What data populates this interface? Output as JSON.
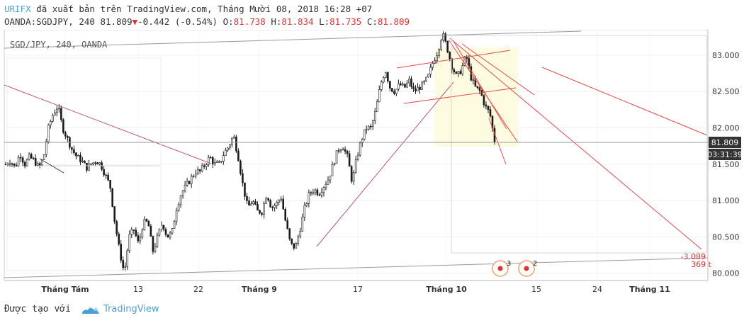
{
  "header": {
    "publisher": "URIFX",
    "published_text": "đã xuất bản trên TradingView.com, Tháng Mười 08, 2018 16:28 +07",
    "symbol_line": "OANDA:SGDJPY, 240",
    "last": "81.809",
    "change": "-0.442 (-0.54%)",
    "o_label": "O:",
    "o": "81.738",
    "h_label": "H:",
    "h": "81.834",
    "l_label": "L:",
    "l": "81.735",
    "c_label": "C:",
    "c": "81.809"
  },
  "footer": {
    "made_with": "Được tạo với",
    "brand": "TradingView"
  },
  "colors": {
    "up": "#1a1a1a",
    "trend_red": "#e84848",
    "trend_pink": "#c0508a",
    "box_fill": "#fdfbe0",
    "link": "#4aa0d6"
  },
  "chart_data": {
    "type": "candlestick",
    "title": "SGD/JPY, 240, OANDA",
    "ylim": [
      79.9,
      83.35
    ],
    "y_ticks": [
      80.0,
      80.5,
      81.0,
      81.5,
      82.0,
      82.5,
      83.0
    ],
    "y_tick_labels": [
      "80.000",
      "80.500",
      "81.000",
      "81.500",
      "82.000",
      "82.500",
      "83.000"
    ],
    "x_ticks": [
      "Tháng Tám",
      "13",
      "22",
      "Tháng 9",
      "17",
      "Tháng 10",
      "15",
      "24",
      "Tháng 11"
    ],
    "x_ticks_bold": [
      true,
      false,
      false,
      true,
      false,
      true,
      false,
      false,
      true
    ],
    "price_label": "81.809",
    "countdown": "03:31:39",
    "measure": {
      "change": "-3.089",
      "bars": "369 t"
    },
    "events": [
      {
        "label": "3"
      },
      {
        "label": "2"
      }
    ],
    "close_path": [
      81.5,
      81.55,
      81.45,
      81.65,
      81.5,
      81.6,
      81.55,
      81.45,
      81.6,
      82.0,
      82.2,
      82.3,
      82.0,
      81.85,
      81.7,
      81.6,
      81.55,
      81.45,
      81.5,
      81.55,
      81.5,
      81.35,
      81.2,
      80.7,
      80.3,
      80.0,
      80.5,
      80.6,
      80.4,
      80.7,
      80.7,
      80.3,
      80.5,
      80.7,
      80.5,
      80.55,
      80.9,
      81.1,
      81.2,
      81.3,
      81.4,
      81.4,
      81.5,
      81.6,
      81.5,
      81.5,
      81.65,
      81.75,
      81.9,
      81.6,
      81.2,
      80.9,
      81.0,
      80.85,
      80.85,
      81.1,
      80.9,
      80.95,
      81.05,
      80.7,
      80.4,
      80.35,
      80.6,
      80.9,
      81.1,
      81.15,
      81.1,
      81.2,
      81.3,
      81.5,
      81.7,
      81.75,
      81.6,
      81.25,
      81.6,
      81.85,
      82.0,
      82.0,
      82.25,
      82.6,
      82.8,
      82.55,
      82.5,
      82.6,
      82.55,
      82.65,
      82.5,
      82.55,
      82.6,
      82.7,
      82.9,
      83.05,
      83.3,
      83.1,
      82.85,
      82.7,
      82.8,
      83.0,
      82.7,
      82.55,
      82.5,
      82.3,
      82.2,
      81.82
    ]
  }
}
